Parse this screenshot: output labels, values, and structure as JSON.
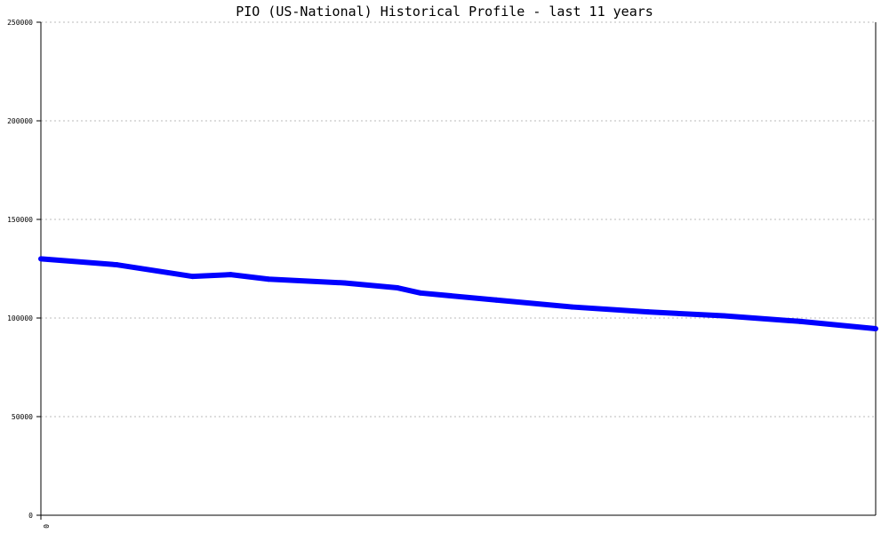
{
  "chart_data": {
    "type": "line",
    "title": "PIO (US-National) Historical Profile - last 11 years",
    "xlabel": "",
    "ylabel": "",
    "xlim": [
      0,
      11
    ],
    "ylim": [
      0,
      250000
    ],
    "x_tick_labels": [
      "0"
    ],
    "y_ticks": [
      0,
      50000,
      100000,
      150000,
      200000,
      250000
    ],
    "y_tick_labels": [
      "0",
      "50000",
      "100000",
      "150000",
      "200000",
      "250000"
    ],
    "grid": true,
    "series": [
      {
        "color": "#0000ff",
        "x": [
          0,
          1,
          2,
          2.5,
          3,
          4,
          4.7,
          5,
          6,
          7,
          8,
          9,
          10,
          11
        ],
        "values": [
          130000,
          127000,
          121100,
          122000,
          119700,
          117800,
          115300,
          112700,
          109100,
          105600,
          103100,
          101100,
          98300,
          94600
        ]
      }
    ]
  }
}
